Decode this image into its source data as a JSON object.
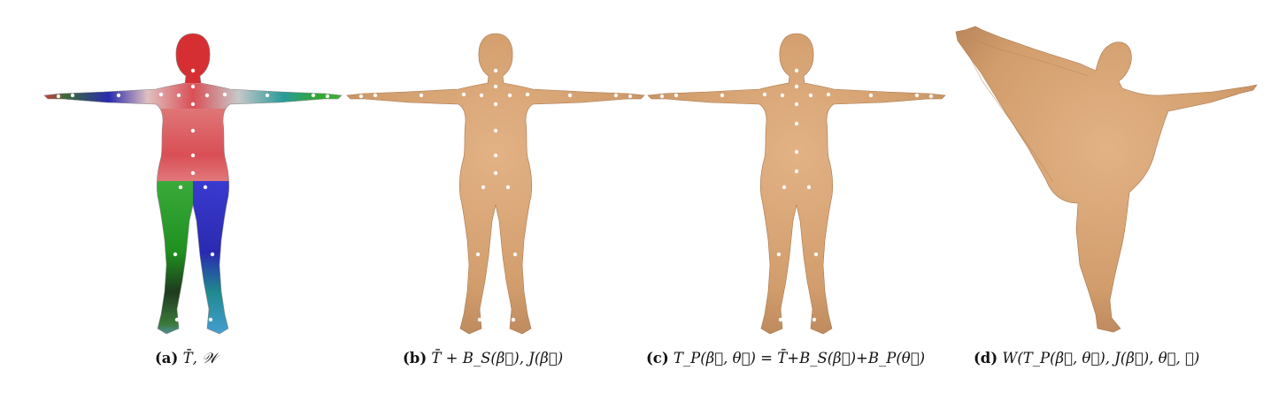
{
  "figure": {
    "panels": [
      {
        "id": "a",
        "label": "(a)",
        "formula": "T̄, 𝒲",
        "fill": "heatmap"
      },
      {
        "id": "b",
        "label": "(b)",
        "formula": "T̄ + B_S(β⃗), J(β⃗)",
        "fill": "#d8a577"
      },
      {
        "id": "c",
        "label": "(c)",
        "formula": "T_P(β⃗, θ⃗) = T̄+B_S(β⃗)+B_P(θ⃗)",
        "fill": "#d8a577"
      },
      {
        "id": "d",
        "label": "(d)",
        "formula": "W(T_P(β⃗, θ⃗), J(β⃗), θ⃗, 𝒲)",
        "fill": "#d8a577"
      }
    ],
    "colors": {
      "skin": "#d8a577",
      "skin_shadow": "#b8855a",
      "joint": "#ffffff",
      "weight_red": "#d8393a",
      "weight_green": "#2ea82e",
      "weight_blue": "#2a2ab8",
      "weight_teal": "#2a8f8f"
    }
  }
}
